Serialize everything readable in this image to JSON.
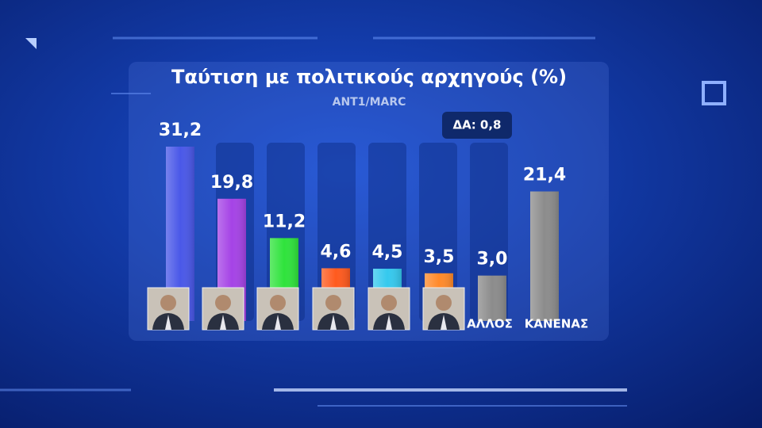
{
  "chart_data": {
    "type": "bar",
    "title": "Ταύτιση με πολιτικούς αρχηγούς (%)",
    "subtitle": "ANT1/MARC",
    "annotation": "ΔΑ: 0,8",
    "categories": [
      null,
      null,
      null,
      null,
      null,
      null,
      "ΑΛΛΟΣ",
      "ΚΑΝΕΝΑΣ"
    ],
    "values": [
      31.2,
      19.8,
      11.2,
      4.6,
      4.5,
      3.5,
      3.0,
      21.4
    ],
    "value_labels": [
      "31,2",
      "19,8",
      "11,2",
      "4,6",
      "4,5",
      "3,5",
      "3,0",
      "21,4"
    ],
    "colors": [
      "#4a58e8",
      "#a543e6",
      "#2fe33c",
      "#ff5a1e",
      "#35c9ee",
      "#ff8a2a",
      "#8c8c8c",
      "#8c8c8c"
    ]
  }
}
